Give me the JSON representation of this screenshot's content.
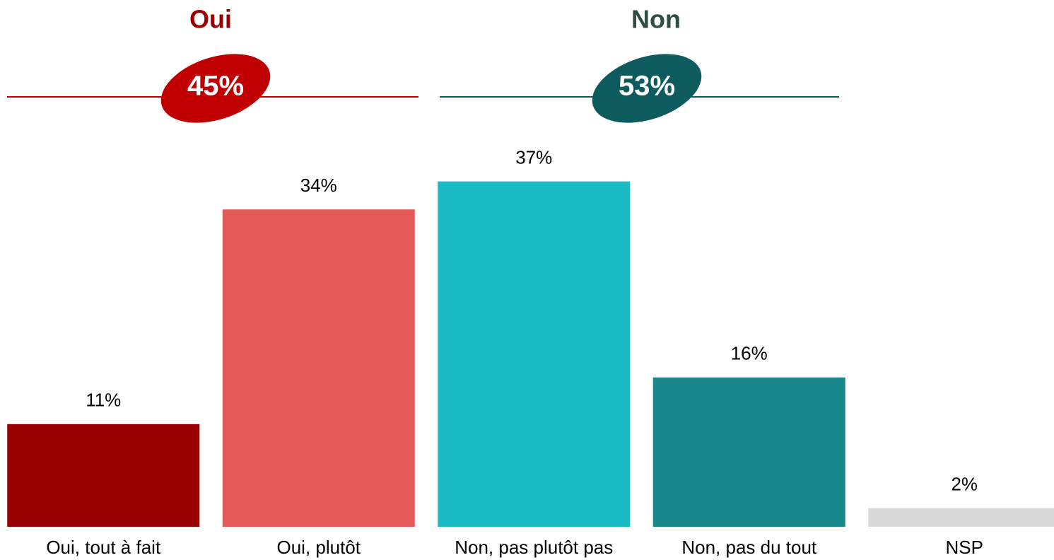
{
  "chart_data": {
    "type": "bar",
    "groups": [
      {
        "label": "Oui",
        "value": 45,
        "value_label": "45%",
        "label_color": "#9b0000",
        "color": "#c00000"
      },
      {
        "label": "Non",
        "value": 53,
        "value_label": "53%",
        "label_color": "#2e4f3f",
        "color": "#0e5b5e"
      }
    ],
    "categories": [
      "Oui, tout à fait",
      "Oui, plutôt",
      "Non, pas plutôt pas",
      "Non, pas du tout",
      "NSP"
    ],
    "values": [
      11,
      34,
      37,
      16,
      2
    ],
    "value_labels": [
      "11%",
      "34%",
      "37%",
      "16%",
      "2%"
    ],
    "colors": [
      "#960000",
      "#e35a58",
      "#1abbc4",
      "#17878c",
      "#d9d9d9"
    ]
  }
}
